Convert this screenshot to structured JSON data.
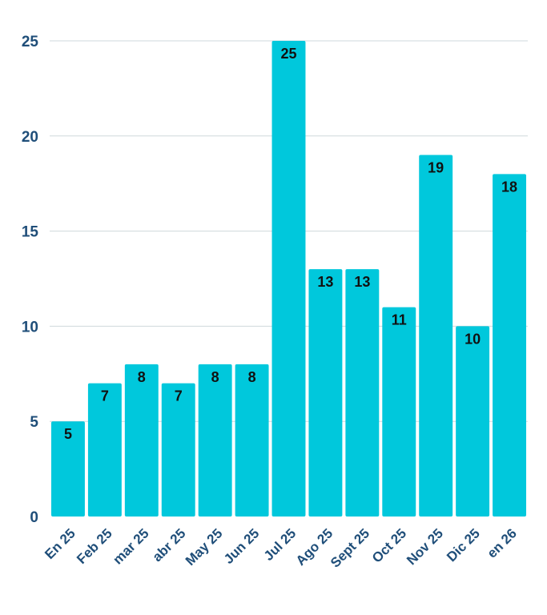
{
  "chart_data": {
    "type": "bar",
    "categories": [
      "En 25",
      "Feb 25",
      "mar 25",
      "abr 25",
      "May 25",
      "Jun 25",
      "Jul 25",
      "Ago 25",
      "Sept 25",
      "Oct 25",
      "Nov 25",
      "Dic 25",
      "en 26"
    ],
    "values": [
      5,
      7,
      8,
      7,
      8,
      8,
      25,
      13,
      13,
      11,
      19,
      10,
      18
    ],
    "title": "",
    "xlabel": "",
    "ylabel": "",
    "ylim": [
      0,
      25
    ],
    "yticks": [
      0,
      5,
      10,
      15,
      20,
      25
    ],
    "grid": true,
    "legend": "none",
    "data_labels": true,
    "colors": {
      "bar": "#00c8dc",
      "tick_text": "#1f4e79",
      "label_text": "#111111",
      "grid": "#cfd8dc"
    }
  }
}
